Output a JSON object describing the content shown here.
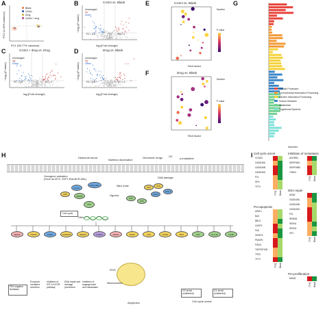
{
  "panelA": {
    "letter": "A",
    "legend": [
      "Blank",
      "CASct",
      "Drug",
      "CASct + drug"
    ],
    "legend_colors": [
      "#e8743b",
      "#2e4a9b",
      "#c9b020",
      "#b53a8f"
    ],
    "xlabel": "PC1 (96.77% variance)",
    "ylabel": "PC2 (1.03% variance)",
    "xticks": [
      "-20",
      "0",
      "20"
    ],
    "yticks": [
      "-4",
      "0",
      "4"
    ]
  },
  "panelB": {
    "letter": "B",
    "title": "CASct vs. Blank",
    "legend": [
      "Unchanged",
      "Up",
      "Down"
    ],
    "xlabel": "log₂(Fold change)",
    "ylabel": "−log₁₀(P value)",
    "fc_left": "FC = 0.5",
    "fc_right": "FC = 2",
    "xticks": [
      "-5",
      "0",
      "5",
      "10"
    ],
    "yticks": [
      "0",
      "5",
      "10",
      "15",
      "20"
    ]
  },
  "panelC": {
    "letter": "C",
    "title": "CASct + drug vs. Drug",
    "legend": [
      "Unchanged",
      "Up",
      "Down"
    ],
    "xlabel": "log₂(Fold change)",
    "ylabel": "−log₁₀(P value)",
    "fc_left": "FC = 0.5",
    "fc_right": "FC = 2",
    "xticks": [
      "-5",
      "0",
      "5"
    ],
    "yticks": [
      "0",
      "5",
      "10"
    ]
  },
  "panelD": {
    "letter": "D",
    "title": "Drug vs. Blank",
    "legend": [
      "Unchanged",
      "Up",
      "Down"
    ],
    "xlabel": "log₂(Fold change)",
    "ylabel": "−log₁₀(P value)",
    "fc_left": "FC = 0.5",
    "fc_right": "FC = 2",
    "xticks": [
      "-5",
      "0",
      "5",
      "10"
    ],
    "yticks": [
      "0",
      "5",
      "10",
      "15",
      "20"
    ]
  },
  "panelE": {
    "letter": "E",
    "title": "CASct vs. Blank",
    "xlabel": "Rich factor",
    "size_legend_title": "Number",
    "color_legend_title": "P value"
  },
  "panelF": {
    "letter": "F",
    "title": "Drug vs. Blank",
    "xlabel": "Rich factor",
    "size_legend_title": "Number",
    "color_legend_title": "P value"
  },
  "panelG": {
    "letter": "G",
    "xlabel": "Number",
    "xticks": [
      "0",
      "100",
      "200",
      "300",
      "400",
      "500"
    ],
    "legend": [
      "Cellular Processes",
      "Environmental Information Processing",
      "Genetic Information Processing",
      "Human Diseases",
      "Metabolism",
      "Organismal Systems"
    ],
    "legend_colors": [
      "#e8453c",
      "#f29b38",
      "#f5d23a",
      "#3a86c8",
      "#6fcf8f",
      "#7fe0d8"
    ]
  },
  "panelH": {
    "letter": "H",
    "stimuli": [
      "Heat/cold shock",
      "Nutrition deprivation",
      "Genotoxic drugs",
      "UV",
      "γ-irradiation"
    ],
    "oncogene": "Oncogene activation\n(Such as MYC, E2F1,Ras,BCR-ABL)",
    "dna_damage": "DNA damage",
    "hypoxia": "Hypoxia",
    "nitric_oxide": "Nitric oxide",
    "dna_label": "DNA",
    "cell_cycle": "Cell cycle",
    "ros": "ROS",
    "mitochondrion": "Mitochondrion",
    "g2_arrest": "G2 arrest\n(sustained)",
    "g1_arrest": "G1 arrest\n(sustained)",
    "cell_cycle_arrest": "Cell cycle arrest",
    "apoptosis": "Apoptosis",
    "bottom_labels": [
      "P53 negative\nfeedback",
      "Exosome\nmediated\nsecretion",
      "Inhibition of\nIGF-1/mTOR\npathway",
      "DNA repair and\ndamage\nprevention",
      "Inhibition of\nangiogenesis\nand metastasis"
    ],
    "genes_row": [
      "MDM2",
      "TSAP6",
      "PTEN",
      "GADD45",
      "SESN2",
      "IGFBP3",
      "APAF1",
      "PIDD",
      "FAS",
      "PUMA",
      "BAX",
      "P21",
      "14-3-3σ",
      "CycB"
    ]
  },
  "panelI": {
    "letter": "I",
    "groups": [
      {
        "title": "Cell cycle arrest",
        "genes": [
          "CCNG2",
          "GADD45A",
          "GADD45B",
          "GADD45G",
          "P21",
          "SFN",
          "TP73"
        ]
      },
      {
        "title": "Inhibition of metastasis",
        "genes": [
          "ADGRB1",
          "SERPINE1",
          "SERPINB5",
          "THBS1"
        ]
      },
      {
        "title": "DNA repair",
        "genes": [
          "DDB2",
          "GADD45A",
          "GADD45B",
          "GADD45G",
          "P21",
          "RRM2B",
          "SESN1",
          "SESN2",
          "XPC"
        ]
      },
      {
        "title": "Pro-apoptosis",
        "genes": [
          "APAF1",
          "BAX",
          "BBC3",
          "CASP3",
          "FAS",
          "IGFBP3",
          "PMAIP1",
          "PIDD1",
          "TNFRSF10B",
          "TP53",
          "TP73"
        ]
      },
      {
        "title": "Pro-proliferation",
        "genes": [
          "MDM2"
        ]
      }
    ],
    "col_labels": [
      "Drug",
      "Blank"
    ],
    "scale_labels": [
      "2",
      "1",
      "0",
      "-1",
      "-2"
    ]
  }
}
